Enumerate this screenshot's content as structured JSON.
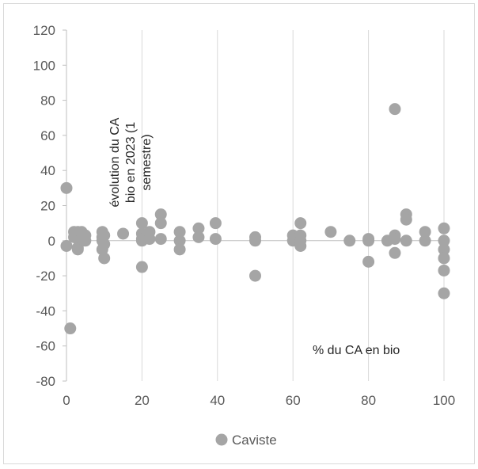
{
  "chart_data": {
    "type": "scatter",
    "title": "",
    "xlabel": "",
    "ylabel": "",
    "xlim": [
      0,
      100
    ],
    "ylim": [
      -80,
      120
    ],
    "xticks": [
      0,
      20,
      40,
      60,
      80,
      100
    ],
    "yticks": [
      120,
      100,
      80,
      60,
      40,
      20,
      0,
      -20,
      -40,
      -60,
      -80
    ],
    "grid": "vertical",
    "legend_position": "bottom",
    "annotations": {
      "y_label_lines": [
        "évolution du CA",
        "bio en 2023 (1",
        "semestre)"
      ],
      "x_label": "% du CA en bio"
    },
    "series": [
      {
        "name": "Caviste",
        "color": "#a5a5a5",
        "points": [
          [
            0,
            30
          ],
          [
            0,
            -3
          ],
          [
            1,
            -50
          ],
          [
            2,
            5
          ],
          [
            2,
            2
          ],
          [
            3,
            5
          ],
          [
            3,
            1
          ],
          [
            3,
            -4
          ],
          [
            3,
            -5
          ],
          [
            4,
            5
          ],
          [
            4,
            1
          ],
          [
            5,
            3
          ],
          [
            5,
            0
          ],
          [
            9.5,
            5
          ],
          [
            9.5,
            2
          ],
          [
            9.5,
            0
          ],
          [
            9.5,
            -5
          ],
          [
            10,
            3
          ],
          [
            10,
            -2
          ],
          [
            10,
            -10
          ],
          [
            15,
            4
          ],
          [
            20,
            10
          ],
          [
            20,
            4
          ],
          [
            20,
            1
          ],
          [
            20,
            0
          ],
          [
            20,
            -15
          ],
          [
            22,
            5
          ],
          [
            22,
            1
          ],
          [
            25,
            15
          ],
          [
            25,
            10
          ],
          [
            25,
            1
          ],
          [
            30,
            5
          ],
          [
            30,
            0
          ],
          [
            30,
            -5
          ],
          [
            35,
            7
          ],
          [
            35,
            2
          ],
          [
            39.5,
            10
          ],
          [
            39.5,
            1
          ],
          [
            50,
            2
          ],
          [
            50,
            0
          ],
          [
            50,
            -20
          ],
          [
            60,
            3
          ],
          [
            60,
            0
          ],
          [
            61,
            1
          ],
          [
            62,
            10
          ],
          [
            62,
            3
          ],
          [
            62,
            0
          ],
          [
            62,
            -3
          ],
          [
            70,
            5
          ],
          [
            75,
            0
          ],
          [
            80,
            1
          ],
          [
            80,
            0
          ],
          [
            80,
            -12
          ],
          [
            85,
            0
          ],
          [
            87,
            75
          ],
          [
            87,
            3
          ],
          [
            87,
            1
          ],
          [
            87,
            -7
          ],
          [
            90,
            15
          ],
          [
            90,
            12
          ],
          [
            90,
            0
          ],
          [
            95,
            5
          ],
          [
            95,
            0
          ],
          [
            100,
            7
          ],
          [
            100,
            0
          ],
          [
            100,
            -5
          ],
          [
            100,
            -10
          ],
          [
            100,
            -17
          ],
          [
            100,
            -30
          ]
        ]
      }
    ]
  }
}
